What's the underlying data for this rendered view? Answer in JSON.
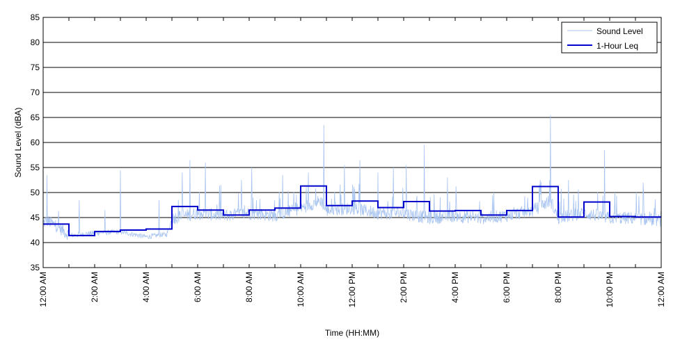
{
  "chart_data": {
    "type": "line",
    "title": "",
    "xlabel": "Time (HH:MM)",
    "ylabel": "Sound Level (dBA)",
    "ylim": [
      35,
      85
    ],
    "xlim_hours": [
      0,
      24
    ],
    "y_ticks": [
      35,
      40,
      45,
      50,
      55,
      60,
      65,
      70,
      75,
      80,
      85
    ],
    "x_tick_labels": [
      "12:00 AM",
      "2:00 AM",
      "4:00 AM",
      "6:00 AM",
      "8:00 AM",
      "10:00 AM",
      "12:00 PM",
      "2:00 PM",
      "4:00 PM",
      "6:00 PM",
      "8:00 PM",
      "10:00 PM",
      "12:00 AM"
    ],
    "grid": "horizontal",
    "legend_position": "top-right",
    "series": [
      {
        "name": "Sound Level",
        "color": "#a8c4f0",
        "style": "thin-line",
        "approx_profile": {
          "hours": [
            0,
            0.15,
            0.5,
            1,
            2,
            3,
            4,
            4.8,
            5,
            6,
            7,
            8,
            9,
            10,
            10.8,
            11,
            12,
            13,
            14,
            15,
            16,
            17,
            18,
            19,
            19.7,
            20,
            21,
            22,
            23,
            24
          ],
          "values": [
            43.5,
            44,
            43,
            41.2,
            41.8,
            42,
            41,
            41.5,
            44.5,
            45.5,
            45,
            45.5,
            45,
            46.5,
            48,
            46,
            46.5,
            45.5,
            45.5,
            44.5,
            45,
            44.5,
            45,
            46,
            48,
            44.5,
            45.5,
            44.5,
            44.5,
            44
          ]
        },
        "peaks": [
          {
            "hour": 0.15,
            "value": 53.5
          },
          {
            "hour": 1.4,
            "value": 48.5
          },
          {
            "hour": 2.4,
            "value": 46.5
          },
          {
            "hour": 3.0,
            "value": 54.5
          },
          {
            "hour": 4.5,
            "value": 48.5
          },
          {
            "hour": 5.4,
            "value": 54
          },
          {
            "hour": 5.7,
            "value": 56.5
          },
          {
            "hour": 6.3,
            "value": 56
          },
          {
            "hour": 6.9,
            "value": 51.5
          },
          {
            "hour": 7.7,
            "value": 52.5
          },
          {
            "hour": 8.1,
            "value": 55
          },
          {
            "hour": 9.3,
            "value": 53.5
          },
          {
            "hour": 10.3,
            "value": 54
          },
          {
            "hour": 10.9,
            "value": 63.5
          },
          {
            "hour": 11.7,
            "value": 55.5
          },
          {
            "hour": 12.3,
            "value": 56.5
          },
          {
            "hour": 13.0,
            "value": 54
          },
          {
            "hour": 13.6,
            "value": 55
          },
          {
            "hour": 14.1,
            "value": 55.5
          },
          {
            "hour": 14.8,
            "value": 59.5
          },
          {
            "hour": 15.7,
            "value": 53
          },
          {
            "hour": 17.5,
            "value": 50
          },
          {
            "hour": 19.3,
            "value": 52.5
          },
          {
            "hour": 19.7,
            "value": 65.5
          },
          {
            "hour": 20.4,
            "value": 52.5
          },
          {
            "hour": 21.8,
            "value": 58.5
          },
          {
            "hour": 22.2,
            "value": 50
          },
          {
            "hour": 23.3,
            "value": 52
          }
        ]
      },
      {
        "name": "1-Hour Leq",
        "color": "#0000cc",
        "style": "step",
        "x_hours": [
          0,
          1,
          2,
          3,
          4,
          5,
          6,
          7,
          8,
          9,
          10,
          11,
          12,
          13,
          14,
          15,
          16,
          17,
          18,
          19,
          20,
          21,
          22,
          23
        ],
        "values": [
          43.7,
          41.4,
          42.2,
          42.5,
          42.7,
          47.2,
          46.5,
          45.5,
          46.5,
          46.9,
          51.3,
          47.4,
          48.3,
          47.0,
          48.2,
          46.3,
          46.4,
          45.5,
          46.4,
          51.2,
          45.1,
          48.1,
          45.2,
          45.1
        ]
      }
    ]
  }
}
